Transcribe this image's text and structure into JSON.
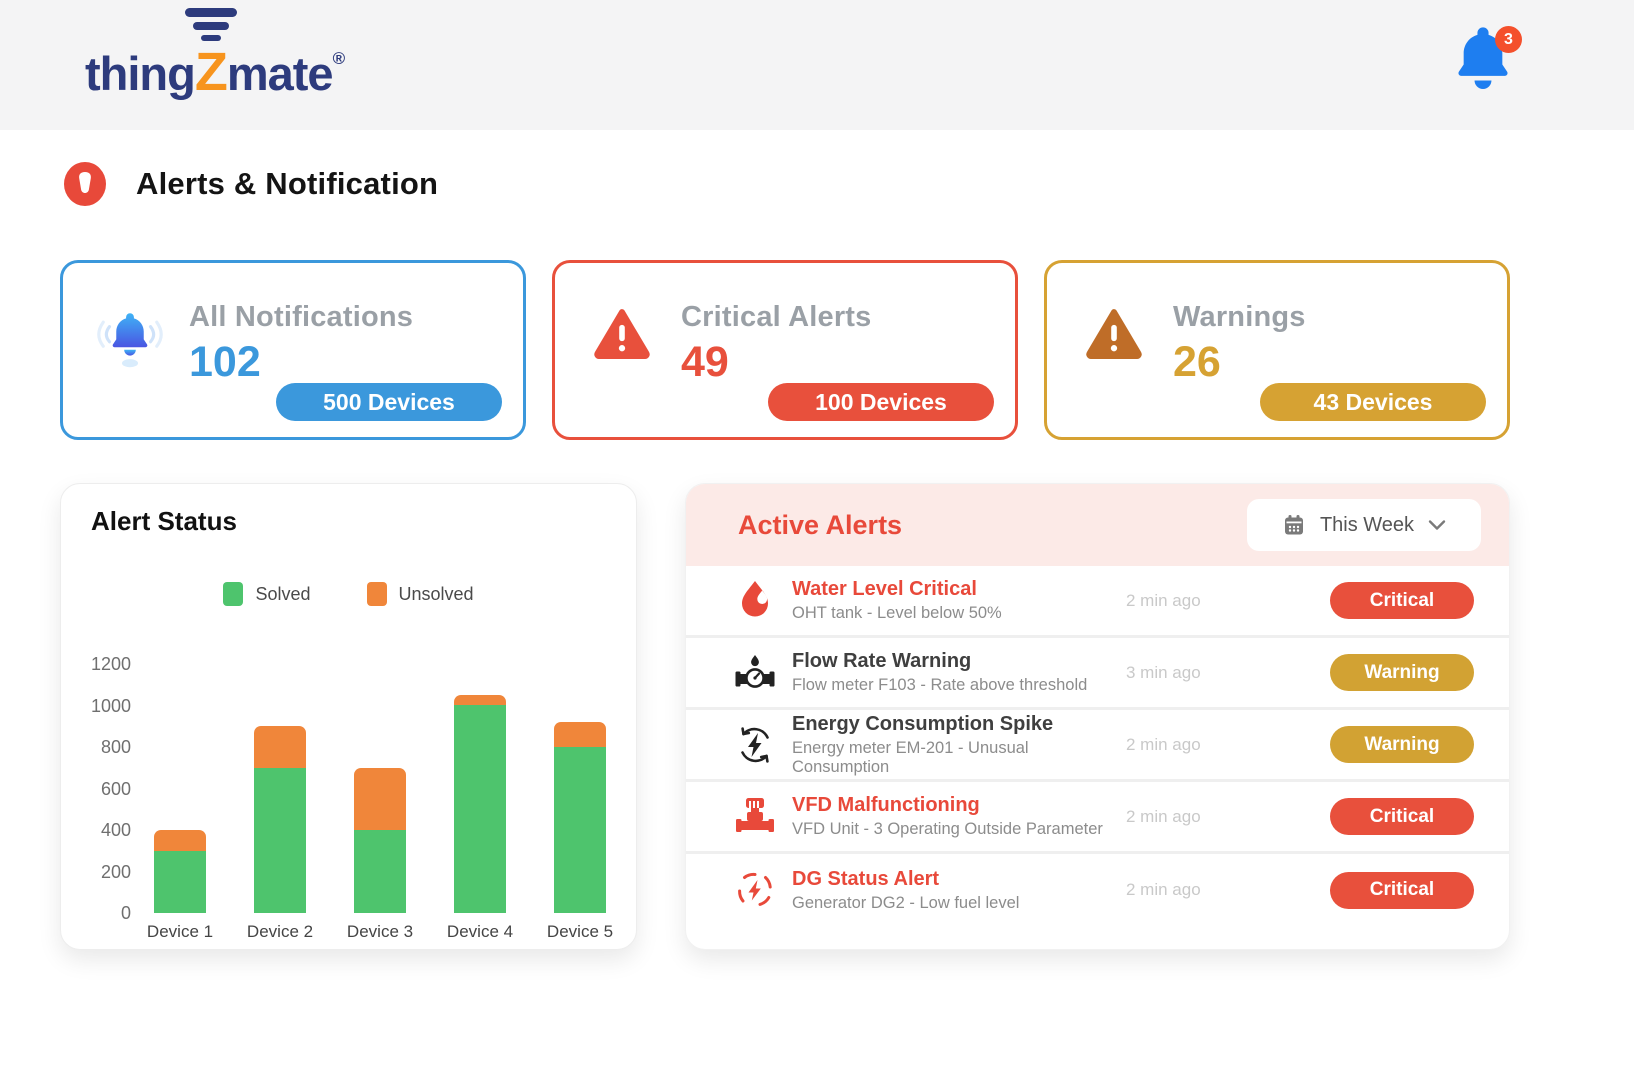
{
  "header": {
    "logo": {
      "part1": "thing",
      "z": "Z",
      "part2": "mate",
      "reg": "®"
    },
    "notifications_badge": "3"
  },
  "page": {
    "title": "Alerts & Notification"
  },
  "summary_cards": [
    {
      "title": "All Notifications",
      "count": "102",
      "devices": "500 Devices",
      "accent": "#3b98dc"
    },
    {
      "title": "Critical Alerts",
      "count": "49",
      "devices": "100 Devices",
      "accent": "#e8503c"
    },
    {
      "title": "Warnings",
      "count": "26",
      "devices": "43 Devices",
      "accent": "#d6a233"
    }
  ],
  "chart_data": {
    "type": "bar",
    "stacked": true,
    "title": "Alert Status",
    "categories": [
      "Device 1",
      "Device 2",
      "Device 3",
      "Device 4",
      "Device 5"
    ],
    "series": [
      {
        "name": "Solved",
        "color": "#4ec46d",
        "values": [
          300,
          700,
          400,
          1000,
          800
        ]
      },
      {
        "name": "Unsolved",
        "color": "#f0863a",
        "values": [
          100,
          200,
          300,
          50,
          120
        ]
      }
    ],
    "ylim": [
      0,
      1200
    ],
    "yticks": [
      0,
      200,
      400,
      600,
      800,
      1000,
      1200
    ],
    "xlabel": "",
    "ylabel": "",
    "grid": false,
    "legend_position": "top"
  },
  "active_alerts": {
    "title": "Active Alerts",
    "filter": {
      "label": "This Week"
    },
    "items": [
      {
        "icon": "water-drop-icon",
        "title": "Water Level Critical",
        "description": "OHT tank - Level below 50%",
        "time": "2 min ago",
        "severity": "Critical"
      },
      {
        "icon": "flow-meter-icon",
        "title": "Flow Rate Warning",
        "description": "Flow meter F103 - Rate above threshold",
        "time": "3 min ago",
        "severity": "Warning"
      },
      {
        "icon": "energy-cycle-icon",
        "title": "Energy Consumption Spike",
        "description": "Energy meter EM-201 - Unusual Consumption",
        "time": "2 min ago",
        "severity": "Warning"
      },
      {
        "icon": "vfd-unit-icon",
        "title": "VFD Malfunctioning",
        "description": "VFD Unit - 3 Operating Outside Parameter",
        "time": "2 min ago",
        "severity": "Critical"
      },
      {
        "icon": "dg-generator-icon",
        "title": "DG Status Alert",
        "description": "Generator DG2 - Low fuel level",
        "time": "2 min ago",
        "severity": "Critical"
      }
    ]
  },
  "colors": {
    "critical": "#e8503c",
    "warning_badge": "#d2a233",
    "critical_title": "#e8493a",
    "normal_title": "#3f3f3f",
    "brand_navy": "#2d3b7d",
    "brand_orange": "#f7941e",
    "topband": "#f4f4f5",
    "alerts_header_bg": "#fceae7"
  }
}
